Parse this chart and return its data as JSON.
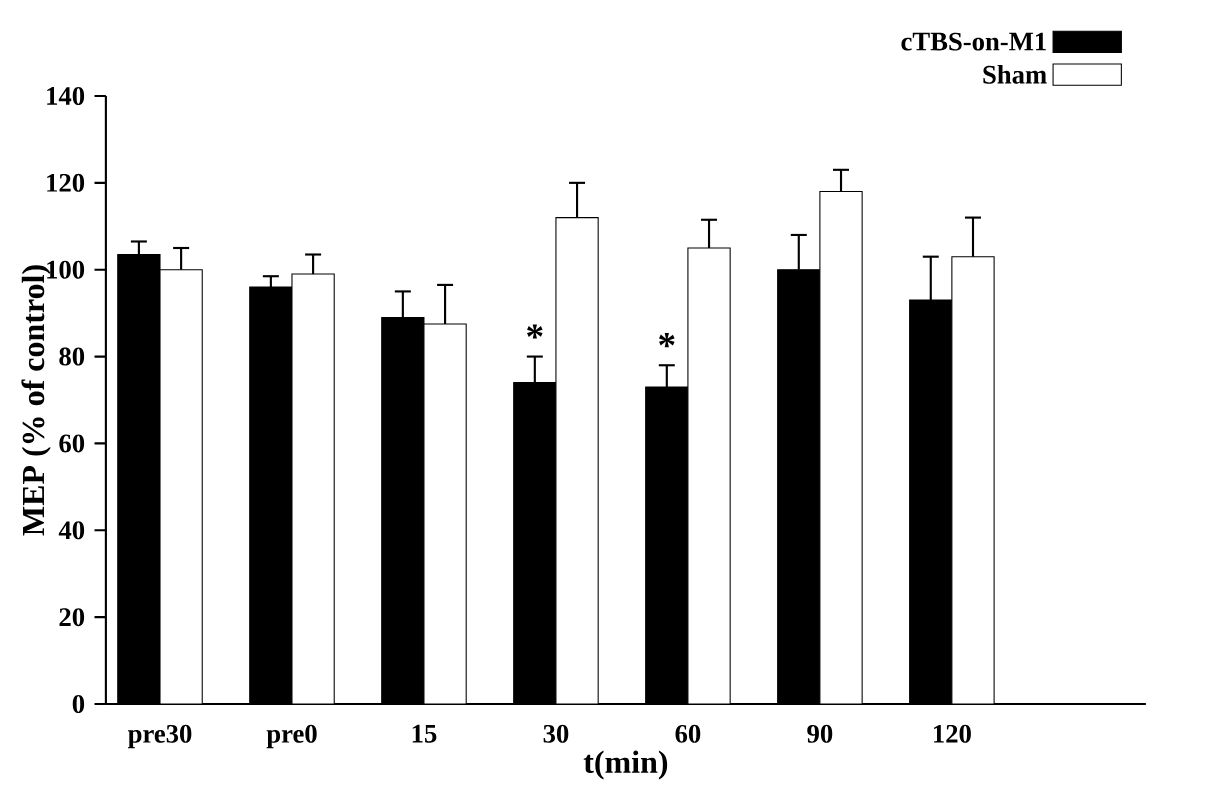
{
  "chart_data": {
    "type": "bar",
    "xlabel": "t(min)",
    "ylabel": "MEP (% of control)",
    "categories": [
      "pre30",
      "pre0",
      "15",
      "30",
      "60",
      "90",
      "120"
    ],
    "series": [
      {
        "name": "cTBS-on-M1",
        "color": "#000000",
        "values": [
          103.5,
          96,
          89,
          74,
          73,
          100,
          93
        ],
        "errors": [
          3,
          2.5,
          6,
          6,
          5,
          8,
          10
        ]
      },
      {
        "name": "Sham",
        "color": "#ffffff",
        "values": [
          100,
          99,
          87.5,
          112,
          105,
          118,
          103
        ],
        "errors": [
          5,
          4.5,
          9,
          8,
          6.5,
          5,
          9
        ]
      }
    ],
    "ylim": [
      0,
      140
    ],
    "yticks": [
      0,
      20,
      40,
      60,
      80,
      100,
      120,
      140
    ],
    "annotations": [
      {
        "text": "*",
        "x": "30",
        "y": 81
      },
      {
        "text": "*",
        "x": "60",
        "y": 79
      }
    ],
    "legend": "top right",
    "grid": false
  }
}
